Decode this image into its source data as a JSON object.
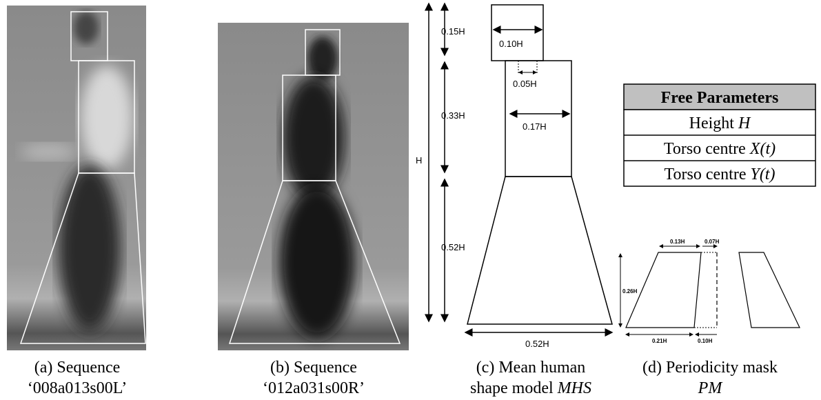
{
  "panels": [
    {
      "caption": [
        "(a) Sequence",
        "‘008a013s00L’"
      ]
    },
    {
      "caption": [
        "(b) Sequence",
        "‘012a031s00R’"
      ]
    },
    {
      "caption": [
        "(c) Mean human",
        "shape model",
        "MHS"
      ]
    },
    {
      "caption": [
        "(d) Periodicity mask",
        "PM"
      ]
    }
  ],
  "shape_model": {
    "labels": [
      "0.15H",
      "0.10H",
      "0.05H",
      "0.33H",
      "0.17H",
      "H",
      "0.52H",
      "0.52H"
    ]
  },
  "mask": {
    "labels": [
      "0.13H",
      "0.07H",
      "0.26H",
      "0.21H",
      "0.10H"
    ]
  },
  "table": {
    "header": "Free Parameters",
    "rows": [
      {
        "label": "Height",
        "variable": "H"
      },
      {
        "label": "Torso centre",
        "variable": "X(t)"
      },
      {
        "label": "Torso centre",
        "variable": "Y(t)"
      }
    ]
  }
}
